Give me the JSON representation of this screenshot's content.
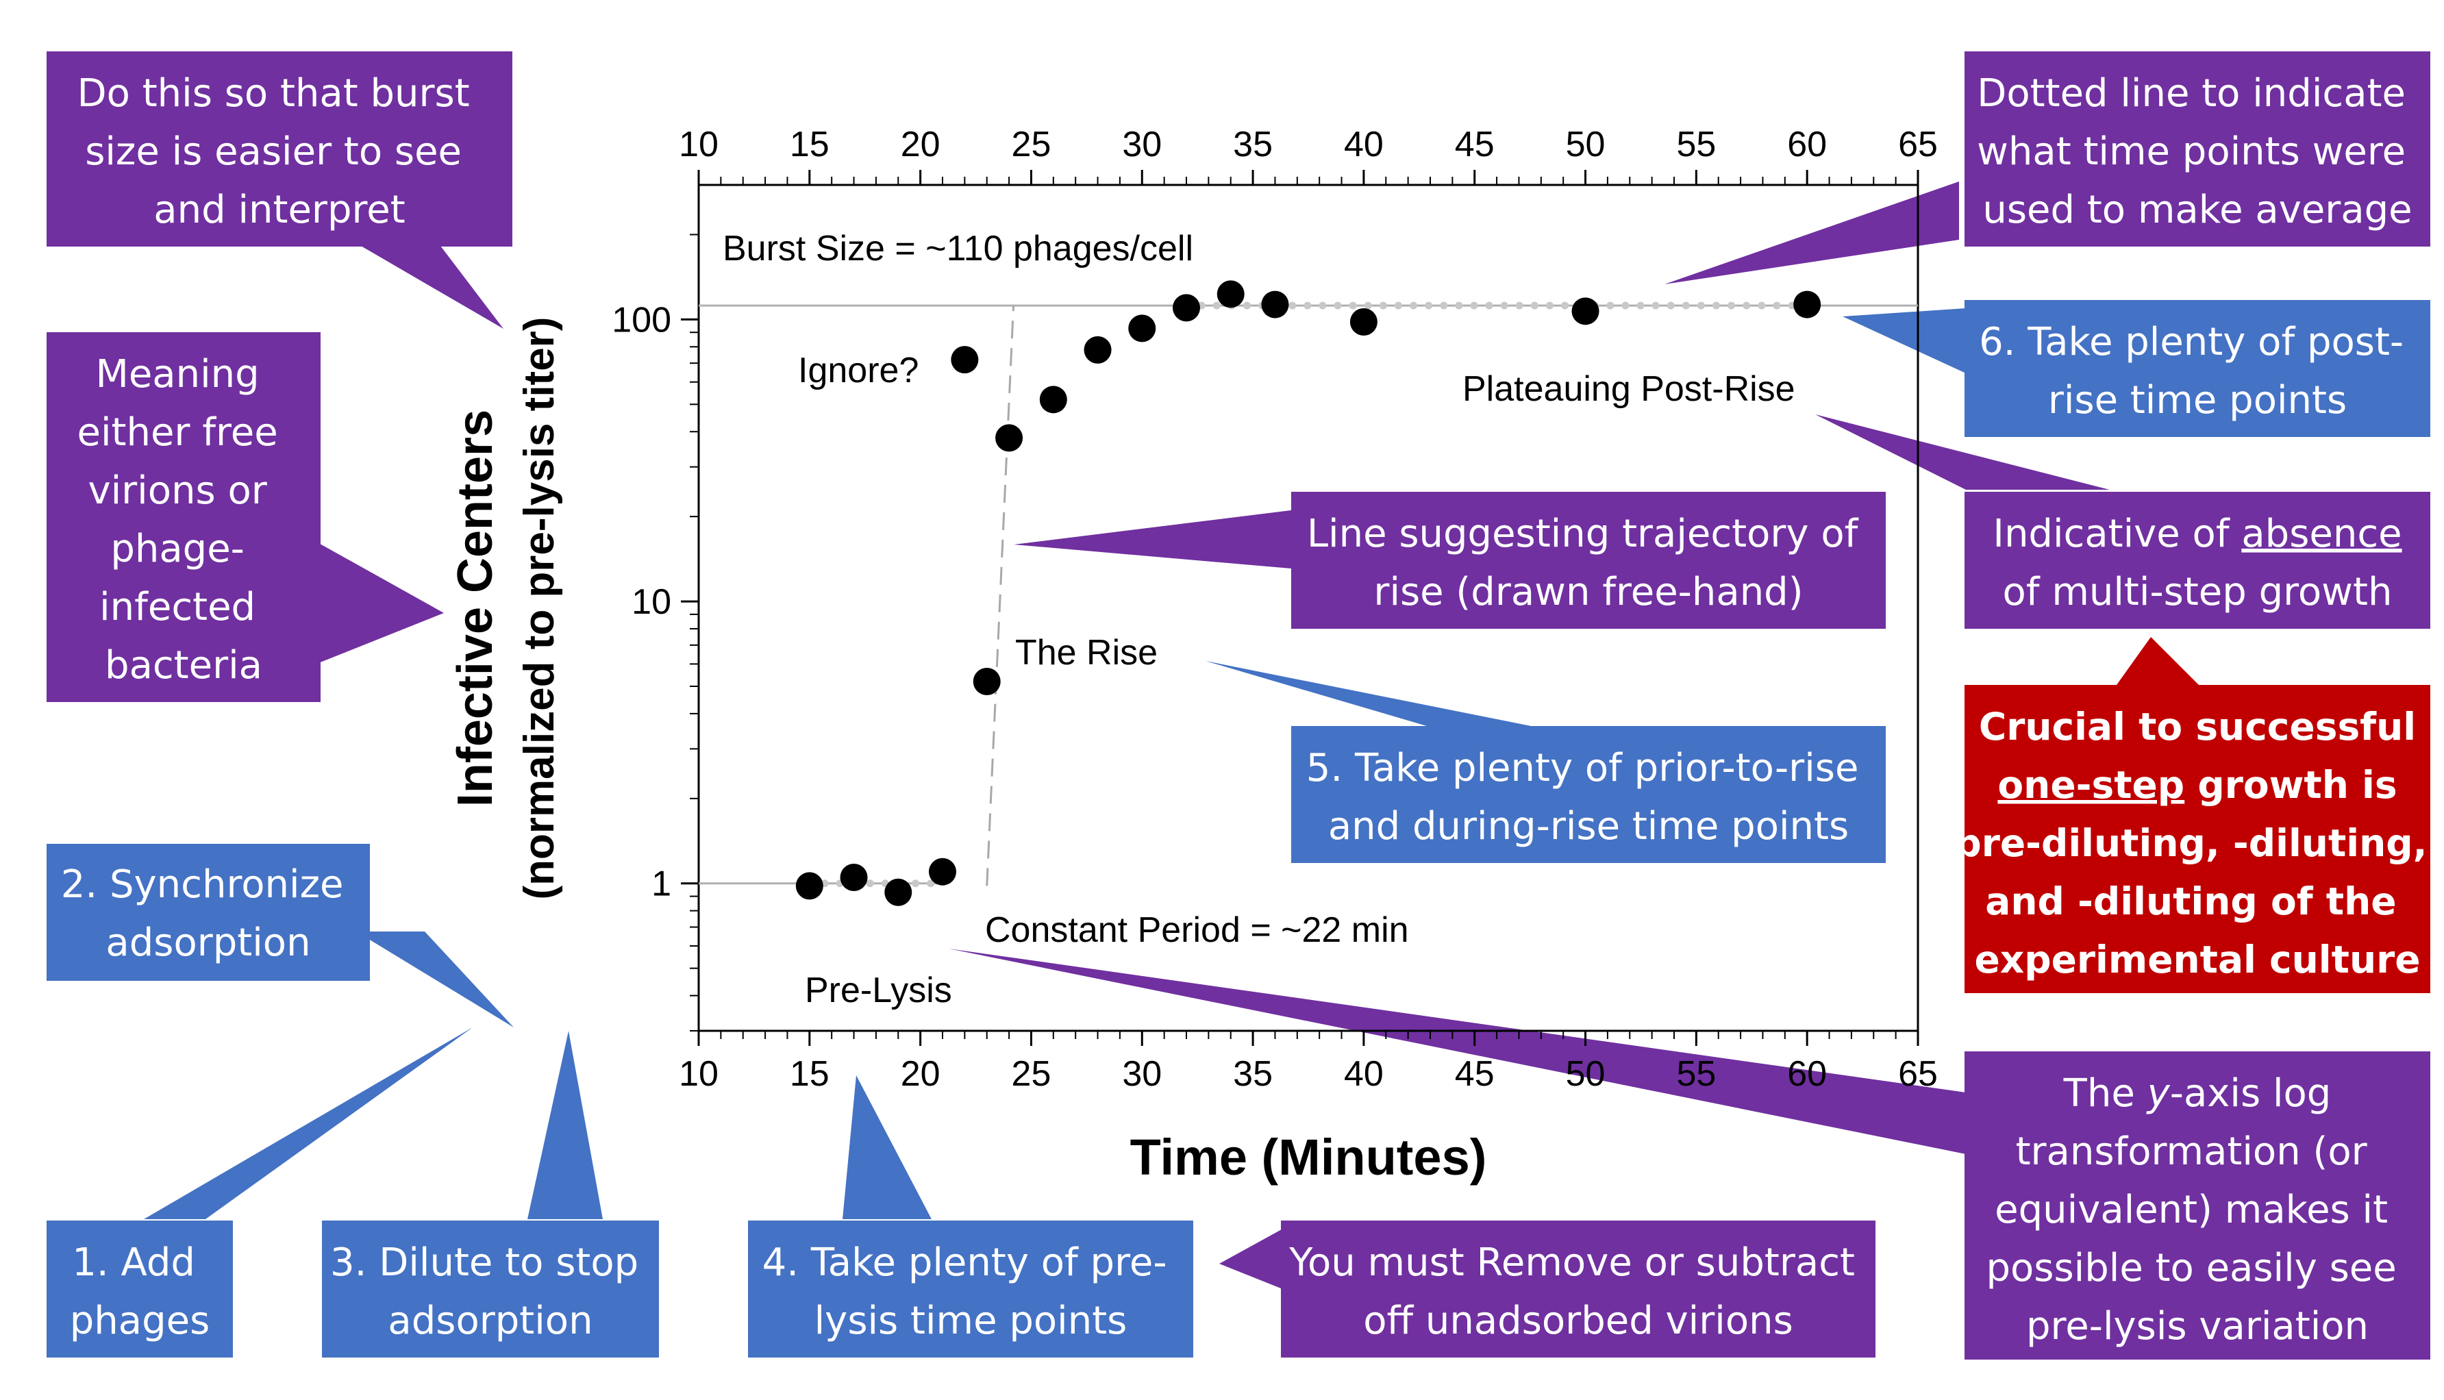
{
  "colors": {
    "purple": "#7030A0",
    "blue": "#4472C4",
    "red": "#C00000",
    "point": "#000000",
    "dotted_line": "#C8C8C8",
    "grid_line": "#B0B0B0"
  },
  "chart_data": {
    "type": "scatter",
    "xlabel": "Time (Minutes)",
    "ylabel": "Infective Centers",
    "ylabel_sub": "(normalized to pre-lysis titer)",
    "y_scale": "log",
    "xlim": [
      10,
      65
    ],
    "ylim": [
      0.3,
      300
    ],
    "x_ticks": [
      10,
      15,
      20,
      25,
      30,
      35,
      40,
      45,
      50,
      55,
      60,
      65
    ],
    "x_tick_labels": [
      "10",
      "15",
      "20",
      "25",
      "30",
      "35",
      "40",
      "45",
      "50",
      "55",
      "60",
      "65"
    ],
    "y_ticks": [
      1,
      10,
      100
    ],
    "y_tick_labels": [
      "1",
      "10",
      "100"
    ],
    "burst_size_level": 112,
    "burst_line_from_x": 32,
    "burst_line_to_x": 60,
    "prelysis_line_from_x": 15,
    "prelysis_line_to_x": 21,
    "rise_trajectory": [
      [
        23,
        0.98
      ],
      [
        24.2,
        112
      ]
    ],
    "points": [
      {
        "x": 15,
        "y": 0.98
      },
      {
        "x": 17,
        "y": 1.05
      },
      {
        "x": 19,
        "y": 0.93
      },
      {
        "x": 21,
        "y": 1.1
      },
      {
        "x": 22,
        "y": 72
      },
      {
        "x": 23,
        "y": 5.2
      },
      {
        "x": 24,
        "y": 38
      },
      {
        "x": 26,
        "y": 52
      },
      {
        "x": 28,
        "y": 78
      },
      {
        "x": 30,
        "y": 93
      },
      {
        "x": 32,
        "y": 110
      },
      {
        "x": 34,
        "y": 123
      },
      {
        "x": 36,
        "y": 113
      },
      {
        "x": 40,
        "y": 98
      },
      {
        "x": 50,
        "y": 107
      },
      {
        "x": 60,
        "y": 113
      }
    ],
    "annotations": {
      "burst_size": "Burst Size = ~110 phages/cell",
      "ignore": "Ignore?",
      "plateau": "Plateauing Post-Rise",
      "rise": "The Rise",
      "constant_period": "Constant Period = ~22 min",
      "pre_lysis": "Pre-Lysis"
    }
  },
  "callouts": {
    "burst_easier": [
      "Do this so that burst",
      "size is easier to see",
      "and interpret"
    ],
    "meaning": [
      "Meaning",
      "either free",
      "virions or",
      "phage-",
      "infected",
      "bacteria"
    ],
    "synchronize": [
      "2. Synchronize",
      "adsorption"
    ],
    "add_phages": [
      "1. Add",
      "phages"
    ],
    "dilute": [
      "3. Dilute to stop",
      "adsorption"
    ],
    "prelysis_points": [
      "4. Take plenty of pre-",
      "lysis time points"
    ],
    "remove_unadsorbed": [
      "You must Remove or subtract",
      "off unadsorbed virions"
    ],
    "dotted_line": [
      "Dotted line to indicate",
      "what time points were",
      "used to make average"
    ],
    "post_rise": [
      "6. Take plenty of post-",
      "rise time points"
    ],
    "multistep_pre": "Indicative of ",
    "multistep_underlined": "absence",
    "multistep_line2": "of multi-step growth",
    "trajectory": [
      "Line suggesting trajectory of",
      "rise (drawn free-hand)"
    ],
    "rise_points": [
      "5. Take plenty of prior-to-rise",
      "and during-rise time points"
    ],
    "crucial_line1": "Crucial to successful",
    "crucial_line2_underlined": "one-step",
    "crucial_line2_rest": " growth is",
    "crucial_rest": [
      "pre-diluting, -diluting,",
      "and -diluting of the",
      "experimental culture"
    ],
    "log_line1_pre": "The ",
    "log_line1_italic": "y",
    "log_line1_post": "-axis log",
    "log_rest": [
      "transformation (or",
      "equivalent) makes it",
      "possible to easily see",
      "pre-lysis variation"
    ]
  }
}
